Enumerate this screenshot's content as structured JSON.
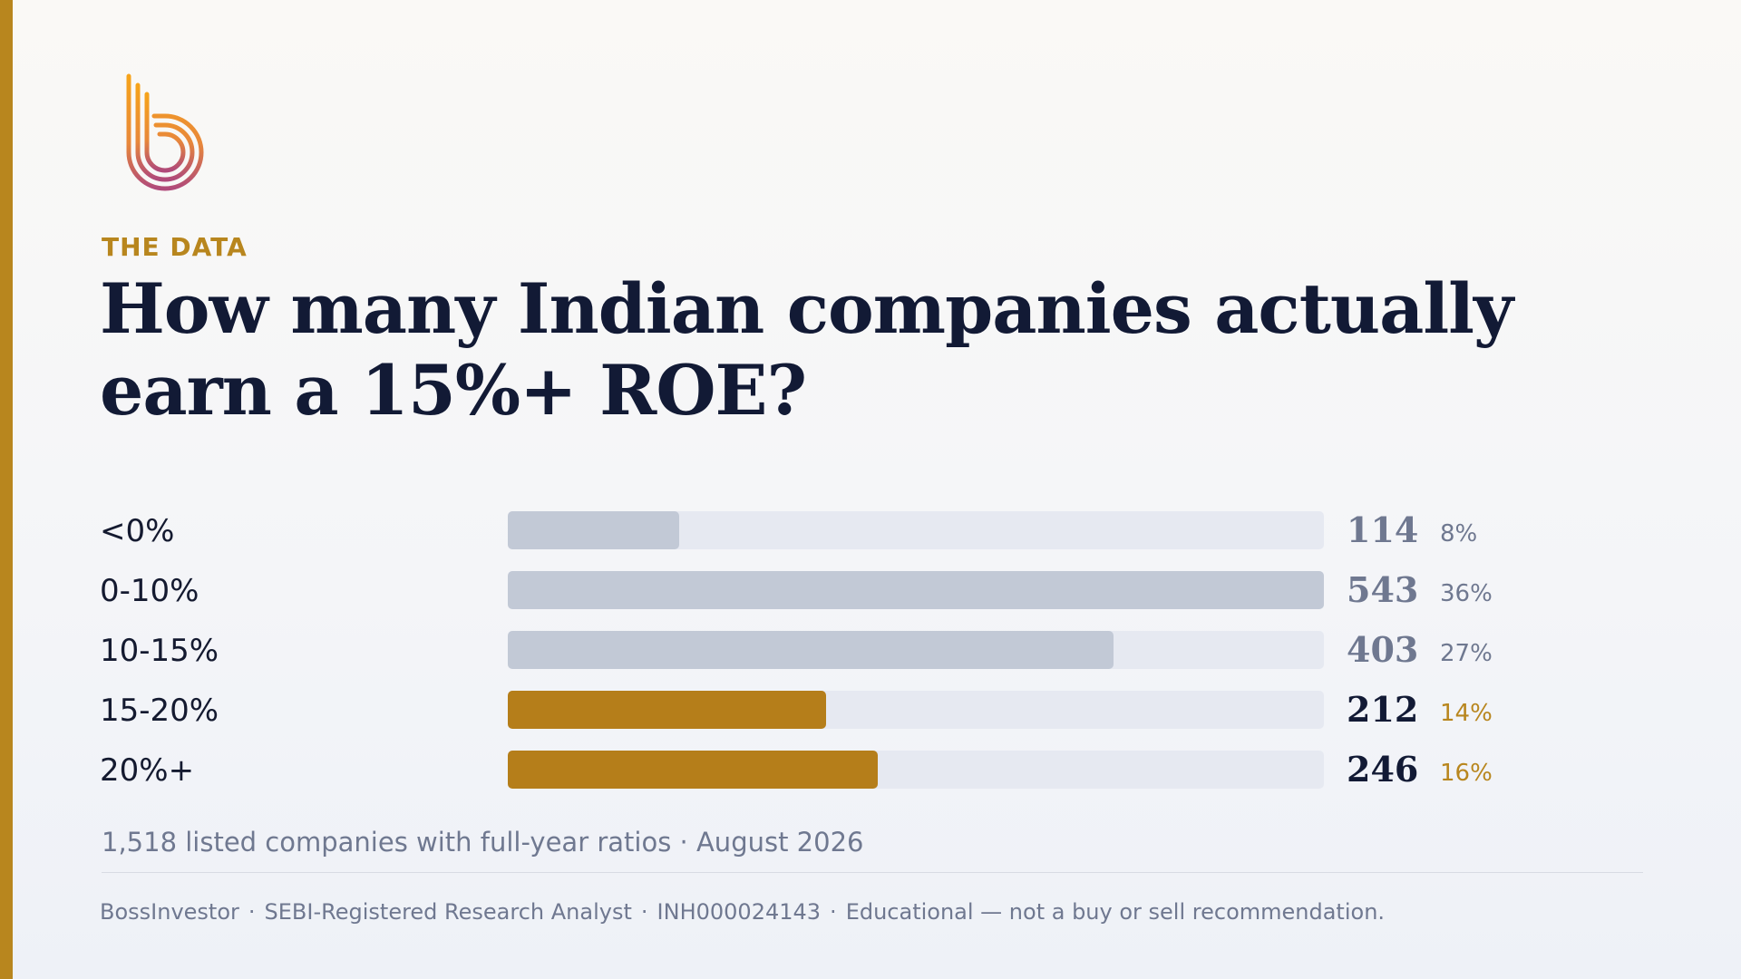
{
  "brand": {
    "logo_icon": "b-logo-icon",
    "accent_color": "#b8861e",
    "muted_color": "#c2c9d6",
    "highlight_color": "#b57e1a"
  },
  "header": {
    "kicker": "THE DATA",
    "title_line1": "How many Indian companies actually",
    "title_line2": "earn a 15%+ ROE?"
  },
  "chart_data": {
    "type": "bar",
    "orientation": "horizontal",
    "categories": [
      "<0%",
      "0-10%",
      "10-15%",
      "15-20%",
      "20%+"
    ],
    "values": [
      114,
      543,
      403,
      212,
      246
    ],
    "percent_labels": [
      "8%",
      "36%",
      "27%",
      "14%",
      "16%"
    ],
    "highlighted": [
      false,
      false,
      false,
      true,
      true
    ],
    "xlim": [
      0,
      543
    ],
    "grid": false,
    "legend": "none"
  },
  "caption": "1,518 listed companies with full-year ratios · August 2026",
  "footer": {
    "items": [
      "BossInvestor",
      "SEBI-Registered Research Analyst",
      "INH000024143",
      "Educational — not a buy or sell recommendation."
    ],
    "separator": "·"
  }
}
